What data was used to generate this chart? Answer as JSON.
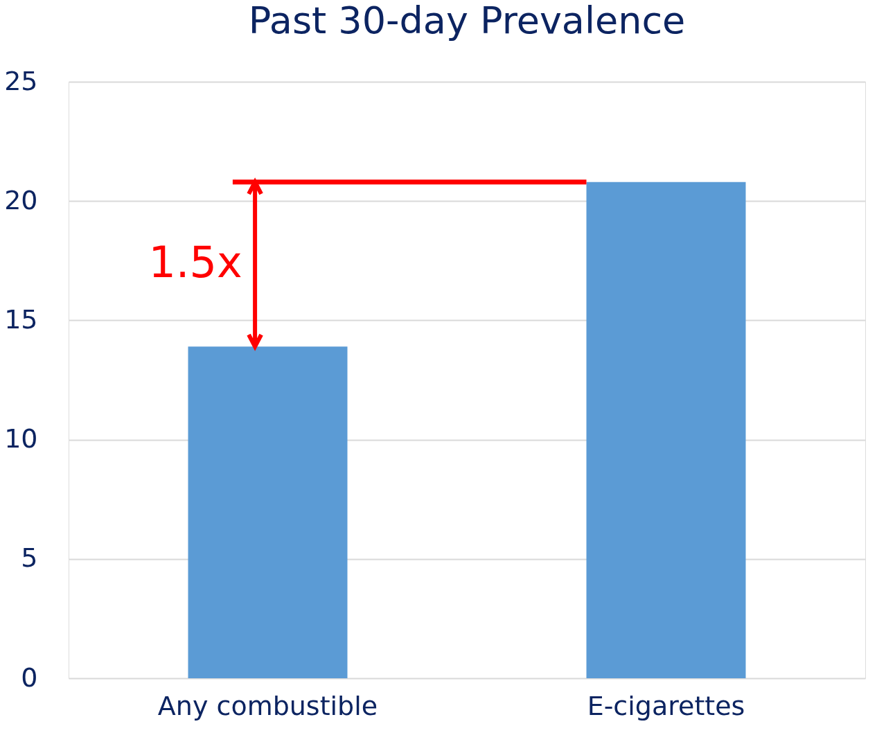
{
  "chart_data": {
    "type": "bar",
    "title": "Past 30-day Prevalence",
    "categories": [
      "Any combustible",
      "E-cigarettes"
    ],
    "values": [
      13.9,
      20.8
    ],
    "color": "#5b9bd5",
    "ylim": [
      0,
      25
    ],
    "yticks": [
      0,
      5,
      10,
      15,
      20,
      25
    ],
    "grid": "y",
    "annotations": [
      "1.5x"
    ]
  }
}
